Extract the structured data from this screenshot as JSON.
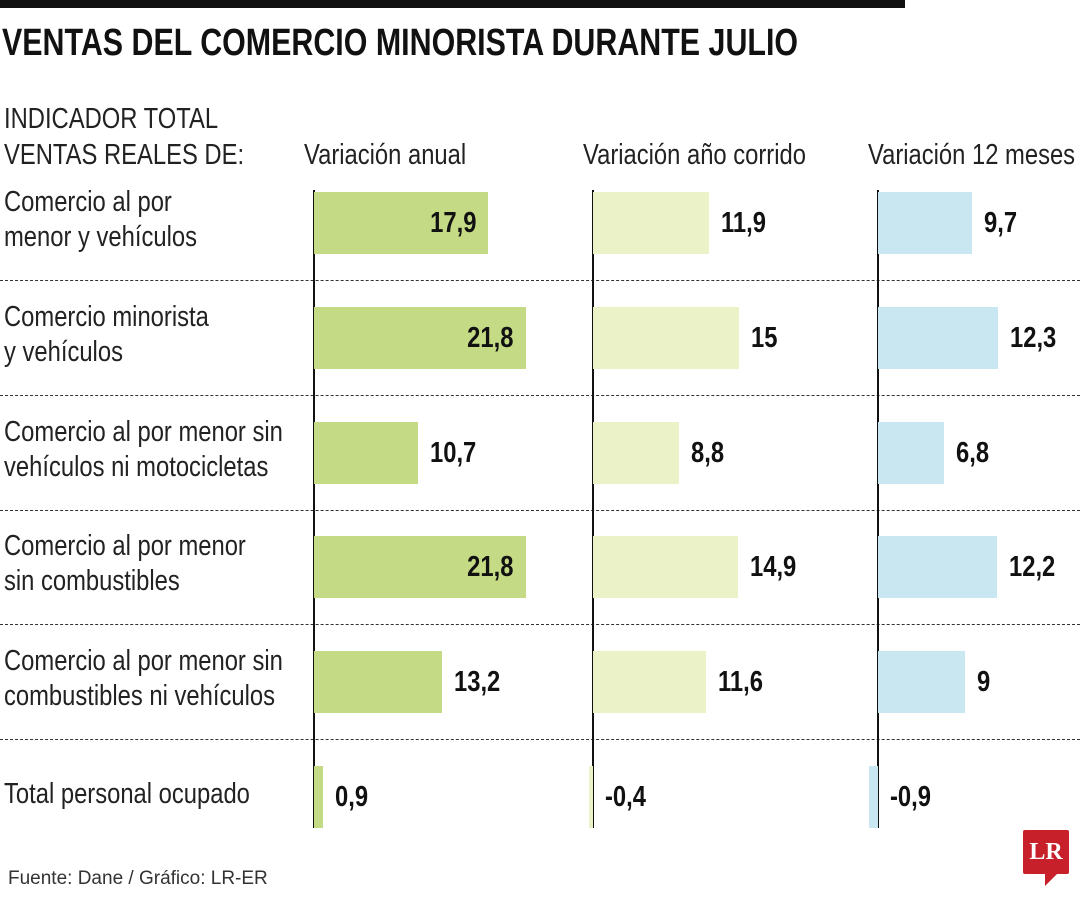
{
  "title": "VENTAS DEL COMERCIO MINORISTA DURANTE JULIO",
  "source": "Fuente: Dane / Gráfico: LR-ER",
  "logo": "LR",
  "chart_data": {
    "type": "bar",
    "orientation": "horizontal",
    "row_header": [
      "INDICADOR TOTAL",
      "VENTAS REALES DE:"
    ],
    "categories": [
      [
        "Comercio al por",
        "menor y vehículos"
      ],
      [
        "Comercio minorista",
        "y vehículos"
      ],
      [
        "Comercio al por menor sin",
        "vehículos ni motocicletas"
      ],
      [
        "Comercio al por menor",
        "sin combustibles"
      ],
      [
        "Comercio al por menor sin",
        "combustibles ni vehículos"
      ],
      [
        "Total personal ocupado"
      ]
    ],
    "series": [
      {
        "name": "Variación anual",
        "color": "#c5da85",
        "values": [
          17.9,
          21.8,
          10.7,
          21.8,
          13.2,
          0.9
        ],
        "labels": [
          "17,9",
          "21,8",
          "10,7",
          "21,8",
          "13,2",
          "0,9"
        ]
      },
      {
        "name": "Variación año corrido",
        "color": "#ecf2c8",
        "values": [
          11.9,
          15,
          8.8,
          14.9,
          11.6,
          -0.4
        ],
        "labels": [
          "11,9",
          "15",
          "8,8",
          "14,9",
          "11,6",
          "-0,4"
        ]
      },
      {
        "name": "Variación 12 meses",
        "color": "#c9e7f1",
        "values": [
          9.7,
          12.3,
          6.8,
          12.2,
          9,
          -0.9
        ],
        "labels": [
          "9,7",
          "12,3",
          "6,8",
          "12,2",
          "9",
          "-0,9"
        ]
      }
    ]
  }
}
